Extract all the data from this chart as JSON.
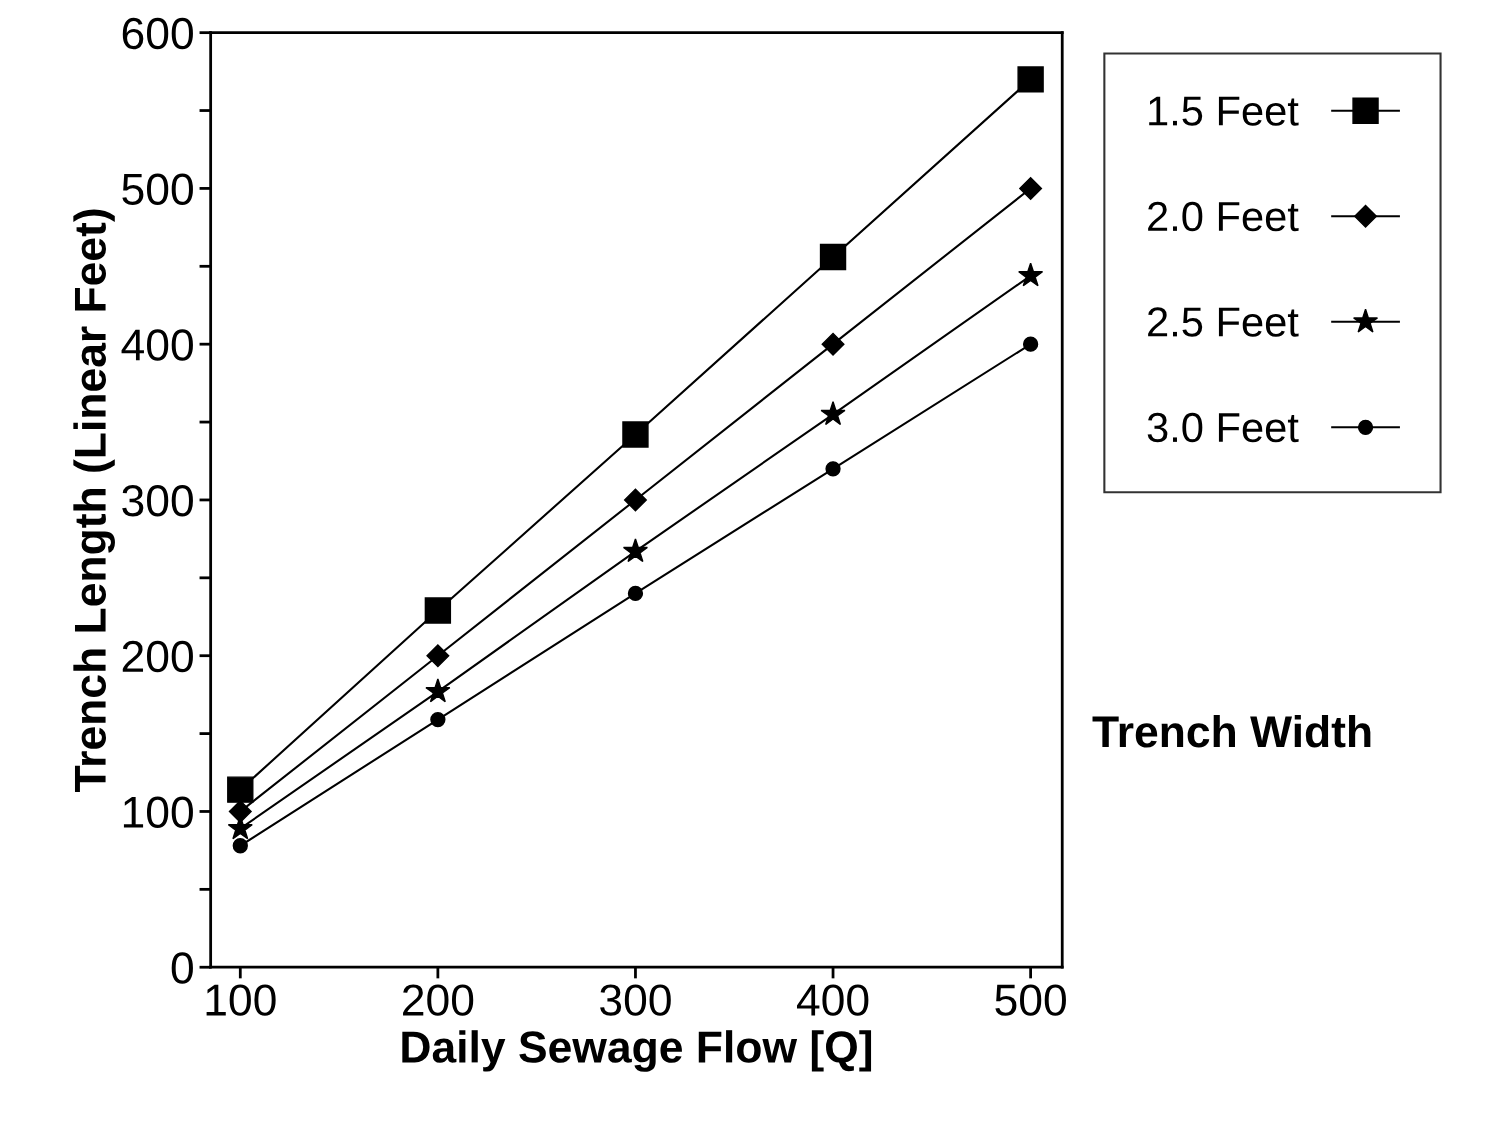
{
  "chart_data": {
    "type": "line",
    "xlabel": "Daily Sewage Flow [Q]",
    "ylabel": "Trench Length (Linear Feet)",
    "legend_title": "Trench Width",
    "x": [
      100,
      200,
      300,
      400,
      500
    ],
    "series": [
      {
        "name": "1.5 Feet",
        "color": "#000000",
        "marker": "square",
        "values": [
          114,
          229,
          342,
          456,
          570
        ]
      },
      {
        "name": "2.0 Feet",
        "color": "#000000",
        "marker": "diamond",
        "values": [
          100,
          200,
          300,
          400,
          500
        ]
      },
      {
        "name": "2.5 Feet",
        "color": "#000000",
        "marker": "star",
        "values": [
          89,
          177,
          267,
          355,
          444
        ]
      },
      {
        "name": "3.0 Feet",
        "color": "#000000",
        "marker": "circle",
        "values": [
          78,
          159,
          240,
          320,
          400
        ]
      }
    ],
    "xlim": [
      85,
      516
    ],
    "ylim": [
      0,
      600
    ],
    "xticks": [
      100,
      200,
      300,
      400,
      500
    ],
    "yticks": [
      0,
      {
        "value": 50,
        "label": null
      },
      100,
      {
        "value": 150,
        "label": null
      },
      200,
      {
        "value": 250,
        "label": null
      },
      300,
      {
        "value": 350,
        "label": null
      },
      400,
      {
        "value": 450,
        "label": null
      },
      500,
      {
        "value": 550,
        "label": null
      },
      600
    ],
    "grid": false,
    "legend": "right",
    "line_style": "solid"
  }
}
